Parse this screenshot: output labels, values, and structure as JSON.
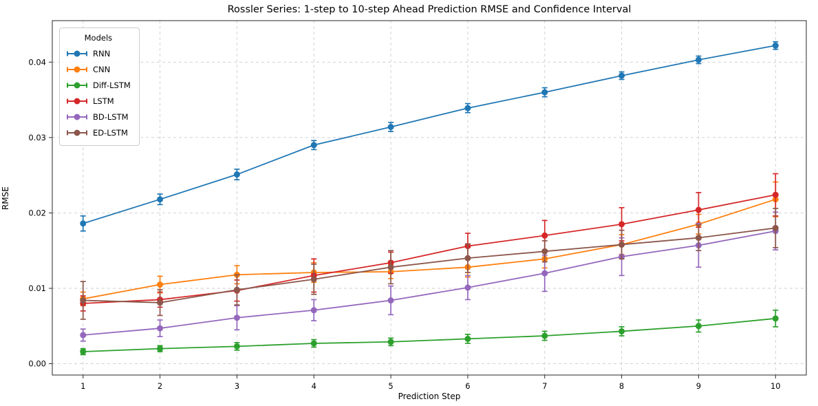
{
  "figure": {
    "background": "#ffffff"
  },
  "chart_data": {
    "type": "line",
    "title": "Rossler Series: 1-step to 10-step Ahead Prediction RMSE and Confidence Interval",
    "xlabel": "Prediction Step",
    "ylabel": "RMSE",
    "x": [
      1,
      2,
      3,
      4,
      5,
      6,
      7,
      8,
      9,
      10
    ],
    "xlim": [
      0.6,
      10.4
    ],
    "ylim": [
      -0.0015,
      0.0455
    ],
    "grid": true,
    "grid_style": "dashed",
    "legend": {
      "title": "Models",
      "position": "upper left"
    },
    "xticks": [
      {
        "v": 1,
        "label": "1"
      },
      {
        "v": 2,
        "label": "2"
      },
      {
        "v": 3,
        "label": "3"
      },
      {
        "v": 4,
        "label": "4"
      },
      {
        "v": 5,
        "label": "5"
      },
      {
        "v": 6,
        "label": "6"
      },
      {
        "v": 7,
        "label": "7"
      },
      {
        "v": 8,
        "label": "8"
      },
      {
        "v": 9,
        "label": "9"
      },
      {
        "v": 10,
        "label": "10"
      }
    ],
    "yticks": [
      {
        "v": 0.0,
        "label": "0.00"
      },
      {
        "v": 0.01,
        "label": "0.01"
      },
      {
        "v": 0.02,
        "label": "0.02"
      },
      {
        "v": 0.03,
        "label": "0.03"
      },
      {
        "v": 0.04,
        "label": "0.04"
      }
    ],
    "series": [
      {
        "name": "RNN",
        "color": "#1f77b4",
        "values": [
          0.0186,
          0.0218,
          0.0251,
          0.029,
          0.0314,
          0.0339,
          0.036,
          0.0382,
          0.0403,
          0.0422
        ],
        "errors": [
          0.001,
          0.0007,
          0.0007,
          0.0006,
          0.0006,
          0.0006,
          0.0006,
          0.0005,
          0.0005,
          0.0005
        ]
      },
      {
        "name": "CNN",
        "color": "#ff7f0e",
        "values": [
          0.0086,
          0.0105,
          0.0118,
          0.0121,
          0.0122,
          0.0128,
          0.0139,
          0.0158,
          0.0185,
          0.0218
        ],
        "errors": [
          0.0009,
          0.0011,
          0.0012,
          0.0013,
          0.0009,
          0.0013,
          0.0012,
          0.0013,
          0.0013,
          0.0023
        ]
      },
      {
        "name": "Diff-LSTM",
        "color": "#2ca02c",
        "values": [
          0.0016,
          0.002,
          0.0023,
          0.0027,
          0.0029,
          0.0033,
          0.0037,
          0.0043,
          0.005,
          0.006
        ],
        "errors": [
          0.0004,
          0.0004,
          0.0005,
          0.0005,
          0.0005,
          0.0006,
          0.0006,
          0.0006,
          0.0008,
          0.0011
        ]
      },
      {
        "name": "LSTM",
        "color": "#d62728",
        "values": [
          0.008,
          0.0085,
          0.0097,
          0.0117,
          0.0134,
          0.0156,
          0.017,
          0.0185,
          0.0204,
          0.0224
        ],
        "errors": [
          0.001,
          0.001,
          0.0014,
          0.0022,
          0.0014,
          0.0017,
          0.002,
          0.0022,
          0.0023,
          0.0028
        ]
      },
      {
        "name": "BD-LSTM",
        "color": "#9467bd",
        "values": [
          0.0038,
          0.0047,
          0.0061,
          0.0071,
          0.0084,
          0.0101,
          0.012,
          0.0142,
          0.0157,
          0.0176
        ],
        "errors": [
          0.0008,
          0.0011,
          0.0016,
          0.0014,
          0.0019,
          0.0016,
          0.0024,
          0.0025,
          0.0029,
          0.0025
        ]
      },
      {
        "name": "ED-LSTM",
        "color": "#8c564b",
        "values": [
          0.0084,
          0.0081,
          0.0098,
          0.0112,
          0.0128,
          0.014,
          0.0149,
          0.0158,
          0.0167,
          0.018
        ],
        "errors": [
          0.0025,
          0.0017,
          0.002,
          0.002,
          0.0022,
          0.0019,
          0.0014,
          0.0019,
          0.0017,
          0.0026
        ]
      }
    ]
  }
}
